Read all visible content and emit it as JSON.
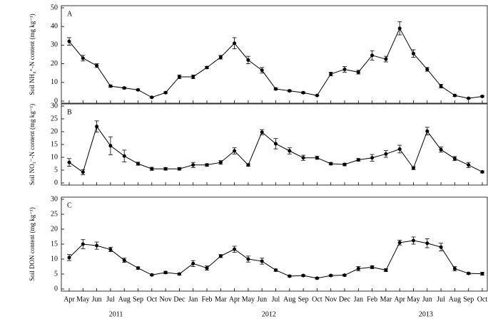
{
  "chart_data": [
    {
      "type": "line",
      "panel_label": "A",
      "ylabel": "Soil NH₄⁺-N content (mg kg⁻¹)",
      "color": "#000000",
      "values": [
        32,
        23,
        19,
        8,
        7,
        6,
        2,
        4.5,
        13,
        13,
        18,
        23.5,
        31,
        22,
        16.5,
        6.5,
        5.5,
        4.5,
        3,
        14.5,
        17,
        15.5,
        24.5,
        22.5,
        39,
        25.5,
        17,
        8,
        3,
        1.5,
        2.5
      ],
      "errors": [
        2,
        1.5,
        1,
        0.5,
        0.5,
        0.5,
        0.3,
        0.5,
        1,
        1,
        0.5,
        1,
        3,
        2,
        1.5,
        0.5,
        0.5,
        0.5,
        0.3,
        1,
        1.5,
        1,
        2.5,
        1.5,
        3.5,
        2,
        1,
        1,
        0.5,
        0.3,
        0.3
      ],
      "ylim": [
        0,
        50
      ],
      "yticks": [
        0,
        10,
        20,
        30,
        40,
        50
      ]
    },
    {
      "type": "line",
      "panel_label": "B",
      "ylabel": "Soil NO₃⁻-N content (mg kg⁻¹)",
      "color": "#000000",
      "values": [
        8,
        4.2,
        22,
        14.5,
        10.5,
        7.5,
        5.5,
        5.5,
        5.5,
        7,
        7,
        8,
        12.5,
        7,
        19.8,
        15.3,
        12.5,
        9.8,
        9.8,
        7.5,
        7.2,
        9,
        9.8,
        11.3,
        13.2,
        5.8,
        20.2,
        13,
        9.5,
        7,
        4.3
      ],
      "errors": [
        1.5,
        1,
        2.2,
        3.5,
        2.3,
        0.6,
        0.6,
        0.5,
        0.5,
        1,
        0.5,
        0.7,
        1.2,
        0.5,
        1,
        2,
        1.2,
        1,
        0.6,
        0.5,
        0.5,
        0.5,
        1.3,
        1.3,
        1.5,
        0.6,
        1.5,
        1,
        0.8,
        1,
        0.4
      ],
      "ylim": [
        0,
        30
      ],
      "yticks": [
        0,
        5,
        10,
        15,
        20,
        25,
        30
      ]
    },
    {
      "type": "line",
      "panel_label": "C",
      "ylabel": "Soil DON content (mg kg⁻¹)",
      "color": "#000000",
      "values": [
        10.5,
        15,
        14.5,
        13.2,
        9.6,
        7,
        4.7,
        5.5,
        5,
        8.5,
        7,
        11,
        13.3,
        10,
        9.3,
        6.3,
        4.3,
        4.5,
        3.6,
        4.5,
        4.6,
        6.8,
        7.3,
        6.3,
        15.5,
        16.2,
        15.3,
        14,
        6.8,
        5.2,
        5.1
      ],
      "errors": [
        1,
        1.5,
        1.2,
        0.7,
        0.7,
        0.4,
        0.3,
        0.4,
        0.3,
        1,
        0.7,
        0.5,
        1,
        1,
        1,
        0.4,
        0.3,
        0.3,
        0.3,
        0.3,
        0.3,
        0.7,
        0.5,
        0.5,
        0.8,
        1.2,
        1.5,
        1.3,
        0.7,
        0.3,
        0.5
      ],
      "ylim": [
        0,
        30
      ],
      "yticks": [
        0,
        5,
        10,
        15,
        20,
        25,
        30
      ],
      "categories": [
        "Apr",
        "May",
        "Jun",
        "Jul",
        "Aug",
        "Sep",
        "Oct",
        "Nov",
        "Dec",
        "Jan",
        "Feb",
        "Mar",
        "Apr",
        "May",
        "Jun",
        "Jul",
        "Aug",
        "Sep",
        "Oct",
        "Nov",
        "Dec",
        "Jan",
        "Feb",
        "Mar",
        "Apr",
        "May",
        "Jun",
        "Jul",
        "Aug",
        "Sep",
        "Oct"
      ],
      "year_labels": [
        "2011",
        "2012",
        "2013"
      ]
    }
  ]
}
